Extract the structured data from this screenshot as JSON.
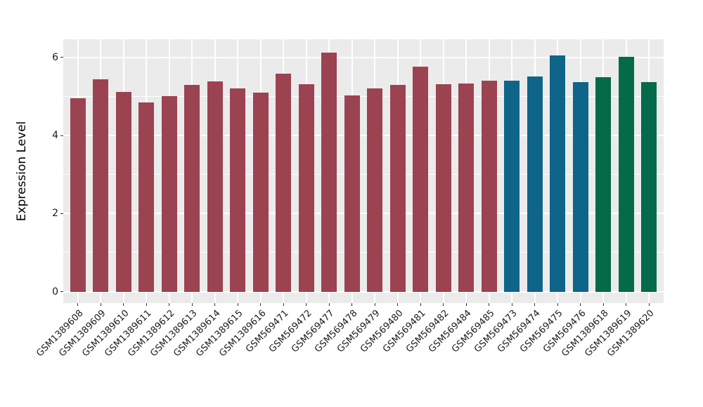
{
  "figure": {
    "background": "#FFFFFF",
    "panel_background": "#EBEBEB",
    "grid_color": "#FFFFFF",
    "tick_color": "#333333",
    "text_color": "#1A1A1A"
  },
  "chart_data": {
    "type": "bar",
    "title": "",
    "xlabel": "",
    "ylabel": "Expression Level",
    "ylim": [
      0,
      6.47
    ],
    "yticks": [
      0,
      2,
      4,
      6
    ],
    "ytick_labels": [
      "0",
      "2",
      "4",
      "6"
    ],
    "yticks_minor": [
      1,
      3,
      5
    ],
    "grid": "on",
    "legend_position": "none",
    "x_label_rotation_deg": 45,
    "categories": [
      "GSM1389608",
      "GSM1389609",
      "GSM1389610",
      "GSM1389611",
      "GSM1389612",
      "GSM1389613",
      "GSM1389614",
      "GSM1389615",
      "GSM1389616",
      "GSM569471",
      "GSM569472",
      "GSM569477",
      "GSM569478",
      "GSM569479",
      "GSM569480",
      "GSM569481",
      "GSM569482",
      "GSM569484",
      "GSM569485",
      "GSM569473",
      "GSM569474",
      "GSM569475",
      "GSM569476",
      "GSM1389618",
      "GSM1389619",
      "GSM1389620"
    ],
    "values": [
      4.97,
      5.45,
      5.12,
      4.85,
      5.02,
      5.3,
      5.4,
      5.21,
      5.1,
      5.6,
      5.33,
      6.14,
      5.03,
      5.22,
      5.3,
      5.77,
      5.33,
      5.35,
      5.41,
      5.42,
      5.53,
      6.07,
      5.38,
      5.51,
      6.03,
      5.38
    ],
    "palette": {
      "maroon": "#9C4351",
      "teal": "#0E6589",
      "green": "#056A49"
    },
    "bar_colors": [
      "#9C4351",
      "#9C4351",
      "#9C4351",
      "#9C4351",
      "#9C4351",
      "#9C4351",
      "#9C4351",
      "#9C4351",
      "#9C4351",
      "#9C4351",
      "#9C4351",
      "#9C4351",
      "#9C4351",
      "#9C4351",
      "#9C4351",
      "#9C4351",
      "#9C4351",
      "#9C4351",
      "#9C4351",
      "#0E6589",
      "#0E6589",
      "#0E6589",
      "#0E6589",
      "#056A49",
      "#056A49",
      "#056A49"
    ]
  }
}
